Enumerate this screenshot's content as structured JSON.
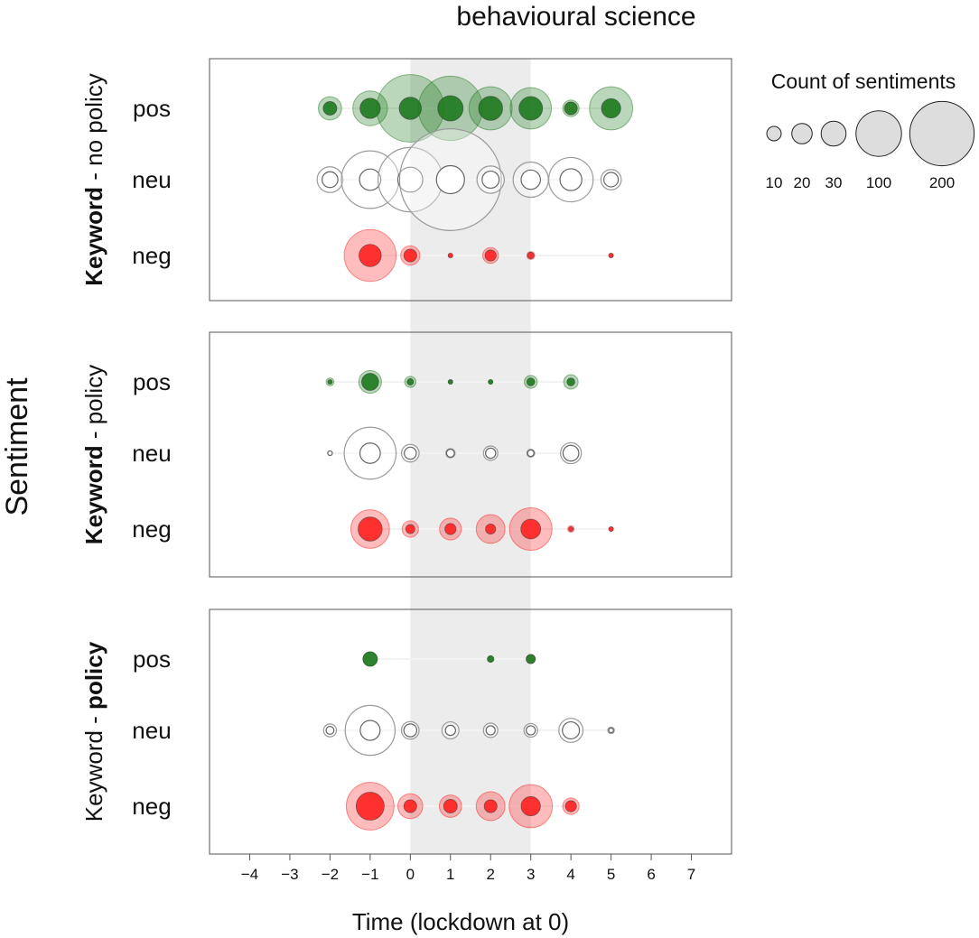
{
  "chart_data": {
    "type": "scatter",
    "title": "behavioural science",
    "xlabel": "Time (lockdown at 0)",
    "ylabel": "Sentiment",
    "xlim": [
      -5,
      8
    ],
    "x_ticks": [
      -4,
      -3,
      -2,
      -1,
      0,
      1,
      2,
      3,
      4,
      5,
      6,
      7
    ],
    "highlight_range": [
      0,
      3
    ],
    "categories": [
      "pos",
      "neu",
      "neg"
    ],
    "colors": {
      "pos": "#1e7a1e",
      "neu": "#ffffff",
      "neg": "#ff2020",
      "highlight": "#ececec"
    },
    "legend": {
      "title": "Count of sentiments",
      "sizes": [
        10,
        20,
        30,
        100,
        200
      ],
      "labels": [
        "10",
        "20",
        "30",
        "100",
        "200"
      ]
    },
    "panels": [
      {
        "label_parts": [
          {
            "text": "Keyword",
            "bold": true
          },
          {
            "text": " - no policy",
            "bold": false
          }
        ],
        "points": {
          "pos": [
            [
              -2,
              26,
              9
            ],
            [
              -1,
              58,
              20
            ],
            [
              0,
              220,
              24
            ],
            [
              1,
              200,
              31
            ],
            [
              2,
              90,
              28
            ],
            [
              3,
              82,
              27
            ],
            [
              4,
              13,
              8
            ],
            [
              5,
              90,
              18
            ]
          ],
          "neu": [
            [
              -2,
              32,
              12
            ],
            [
              -1,
              160,
              22
            ],
            [
              0,
              200,
              30
            ],
            [
              1,
              500,
              38
            ],
            [
              2,
              36,
              14
            ],
            [
              3,
              60,
              18
            ],
            [
              4,
              95,
              23
            ],
            [
              5,
              20,
              10
            ]
          ],
          "neg": [
            [
              -1,
              130,
              24
            ],
            [
              0,
              18,
              8
            ],
            [
              1,
              1,
              1
            ],
            [
              2,
              12,
              6
            ],
            [
              3,
              3,
              2
            ],
            [
              5,
              1,
              1
            ]
          ]
        }
      },
      {
        "label_parts": [
          {
            "text": "Keyword",
            "bold": true
          },
          {
            "text": " - policy",
            "bold": false
          }
        ],
        "points": {
          "pos": [
            [
              -2,
              3,
              1
            ],
            [
              -1,
              25,
              14
            ],
            [
              0,
              6,
              2
            ],
            [
              1,
              1,
              1
            ],
            [
              2,
              1,
              1
            ],
            [
              3,
              8,
              3
            ],
            [
              4,
              10,
              3
            ]
          ],
          "neu": [
            [
              -2,
              1,
              1
            ],
            [
              -1,
              130,
              20
            ],
            [
              0,
              15,
              7
            ],
            [
              1,
              4,
              3
            ],
            [
              2,
              10,
              5
            ],
            [
              3,
              3,
              2
            ],
            [
              4,
              21,
              12
            ]
          ],
          "neg": [
            [
              -1,
              72,
              28
            ],
            [
              0,
              13,
              4
            ],
            [
              1,
              23,
              6
            ],
            [
              2,
              40,
              5
            ],
            [
              3,
              87,
              19
            ],
            [
              4,
              2,
              1
            ],
            [
              5,
              1,
              1
            ]
          ]
        }
      },
      {
        "label_parts": [
          {
            "text": "Keyword",
            "bold": false
          },
          {
            "text": " - ",
            "bold": false
          },
          {
            "text": "policy",
            "bold": true
          }
        ],
        "points": {
          "pos": [
            [
              -1,
              10,
              10
            ],
            [
              2,
              2,
              2
            ],
            [
              3,
              4,
              4
            ]
          ],
          "neu": [
            [
              -2,
              8,
              3
            ],
            [
              -1,
              120,
              19
            ],
            [
              0,
              15,
              8
            ],
            [
              1,
              14,
              5
            ],
            [
              2,
              10,
              4
            ],
            [
              3,
              9,
              4
            ],
            [
              4,
              28,
              14
            ],
            [
              5,
              2,
              1
            ]
          ],
          "neg": [
            [
              -1,
              110,
              38
            ],
            [
              0,
              30,
              8
            ],
            [
              1,
              24,
              9
            ],
            [
              2,
              40,
              8
            ],
            [
              3,
              90,
              18
            ],
            [
              4,
              13,
              6
            ]
          ]
        }
      }
    ]
  }
}
